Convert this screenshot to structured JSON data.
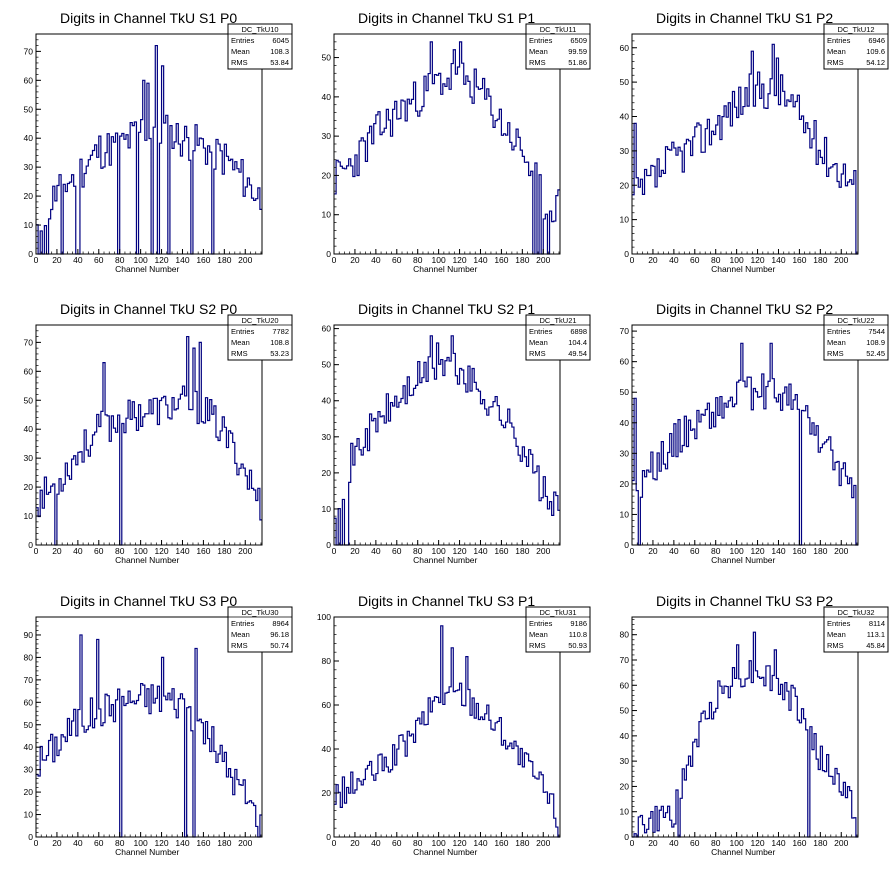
{
  "colors": {
    "line": "#000080",
    "frame": "#000000",
    "background": "#ffffff"
  },
  "stats_labels": {
    "entries": "Entries",
    "mean": "Mean",
    "rms": "RMS"
  },
  "chart_data": [
    {
      "type": "histogram",
      "title": "Digits in Channel TkU S1 P0",
      "xlabel": "Channel Number",
      "ylabel": "",
      "xlim": [
        0,
        216
      ],
      "ylim": [
        0,
        76
      ],
      "yticks": [
        0,
        10,
        20,
        30,
        40,
        50,
        60,
        70
      ],
      "xticks": [
        0,
        20,
        40,
        60,
        80,
        100,
        120,
        140,
        160,
        180,
        200
      ],
      "stats": {
        "name": "DC_TkU10",
        "entries": "6045",
        "mean": "108.3",
        "rms": "53.84"
      },
      "profile": [
        [
          0,
          8
        ],
        [
          20,
          22
        ],
        [
          40,
          28
        ],
        [
          60,
          36
        ],
        [
          80,
          37
        ],
        [
          100,
          43
        ],
        [
          110,
          44
        ],
        [
          130,
          41
        ],
        [
          160,
          37
        ],
        [
          180,
          33
        ],
        [
          200,
          25
        ],
        [
          216,
          18
        ]
      ],
      "spikes": [
        [
          114,
          72
        ],
        [
          102,
          60
        ],
        [
          106,
          59
        ],
        [
          120,
          65
        ]
      ],
      "dips": [
        [
          2,
          0
        ],
        [
          6,
          0
        ],
        [
          24,
          0
        ],
        [
          38,
          0
        ],
        [
          41,
          0
        ],
        [
          78,
          0
        ],
        [
          96,
          0
        ],
        [
          110,
          0
        ],
        [
          116,
          0
        ],
        [
          126,
          0
        ],
        [
          148,
          0
        ],
        [
          168,
          0
        ],
        [
          10,
          0
        ]
      ],
      "noise": 7,
      "seed": 11
    },
    {
      "type": "histogram",
      "title": "Digits in Channel TkU S1 P1",
      "xlabel": "Channel Number",
      "ylabel": "",
      "xlim": [
        0,
        216
      ],
      "ylim": [
        0,
        56
      ],
      "yticks": [
        0,
        10,
        20,
        30,
        40,
        50
      ],
      "xticks": [
        0,
        20,
        40,
        60,
        80,
        100,
        120,
        140,
        160,
        180,
        200
      ],
      "stats": {
        "name": "DC_TkU11",
        "entries": "6509",
        "mean": "99.59",
        "rms": "51.86"
      },
      "profile": [
        [
          0,
          19
        ],
        [
          20,
          24
        ],
        [
          40,
          31
        ],
        [
          60,
          36
        ],
        [
          80,
          40
        ],
        [
          100,
          44
        ],
        [
          120,
          45
        ],
        [
          140,
          41
        ],
        [
          160,
          33
        ],
        [
          180,
          26
        ],
        [
          200,
          13
        ],
        [
          216,
          12
        ]
      ],
      "spikes": [
        [
          92,
          54
        ],
        [
          120,
          54
        ],
        [
          114,
          52
        ]
      ],
      "dips": [
        [
          190,
          0
        ],
        [
          194,
          0
        ],
        [
          198,
          0
        ],
        [
          204,
          0
        ]
      ],
      "noise": 5,
      "seed": 23
    },
    {
      "type": "histogram",
      "title": "Digits in Channel TkU S1 P2",
      "xlabel": "Channel Number",
      "ylabel": "",
      "xlim": [
        0,
        216
      ],
      "ylim": [
        0,
        64
      ],
      "yticks": [
        0,
        10,
        20,
        30,
        40,
        50,
        60
      ],
      "xticks": [
        0,
        20,
        40,
        60,
        80,
        100,
        120,
        140,
        160,
        180,
        200
      ],
      "stats": {
        "name": "DC_TkU12",
        "entries": "6946",
        "mean": "109.6",
        "rms": "54.12"
      },
      "profile": [
        [
          0,
          15
        ],
        [
          20,
          22
        ],
        [
          40,
          28
        ],
        [
          60,
          32
        ],
        [
          80,
          38
        ],
        [
          100,
          44
        ],
        [
          120,
          48
        ],
        [
          140,
          48
        ],
        [
          160,
          40
        ],
        [
          180,
          30
        ],
        [
          200,
          24
        ],
        [
          214,
          20
        ]
      ],
      "spikes": [
        [
          134,
          61
        ],
        [
          114,
          59
        ],
        [
          138,
          57
        ],
        [
          2,
          38
        ]
      ],
      "dips": [
        [
          214,
          0
        ]
      ],
      "noise": 6,
      "seed": 37
    },
    {
      "type": "histogram",
      "title": "Digits in Channel TkU S2 P0",
      "xlabel": "Channel Number",
      "ylabel": "",
      "xlim": [
        0,
        216
      ],
      "ylim": [
        0,
        76
      ],
      "yticks": [
        0,
        10,
        20,
        30,
        40,
        50,
        60,
        70
      ],
      "xticks": [
        0,
        20,
        40,
        60,
        80,
        100,
        120,
        140,
        160,
        180,
        200
      ],
      "stats": {
        "name": "DC_TkU20",
        "entries": "7782",
        "mean": "108.8",
        "rms": "53.23"
      },
      "profile": [
        [
          0,
          15
        ],
        [
          20,
          22
        ],
        [
          40,
          32
        ],
        [
          60,
          40
        ],
        [
          80,
          43
        ],
        [
          100,
          46
        ],
        [
          120,
          47
        ],
        [
          140,
          49
        ],
        [
          160,
          47
        ],
        [
          180,
          38
        ],
        [
          200,
          25
        ],
        [
          216,
          12
        ]
      ],
      "spikes": [
        [
          64,
          63
        ],
        [
          144,
          72
        ],
        [
          156,
          70
        ],
        [
          150,
          68
        ]
      ],
      "dips": [
        [
          18,
          0
        ],
        [
          80,
          0
        ]
      ],
      "noise": 6,
      "seed": 53
    },
    {
      "type": "histogram",
      "title": "Digits in Channel TkU S2 P1",
      "xlabel": "Channel Number",
      "ylabel": "",
      "xlim": [
        0,
        216
      ],
      "ylim": [
        0,
        61
      ],
      "yticks": [
        0,
        10,
        20,
        30,
        40,
        50,
        60
      ],
      "xticks": [
        0,
        20,
        40,
        60,
        80,
        100,
        120,
        140,
        160,
        180,
        200
      ],
      "stats": {
        "name": "DC_TkU21",
        "entries": "6898",
        "mean": "104.4",
        "rms": "49.54"
      },
      "profile": [
        [
          0,
          12
        ],
        [
          20,
          26
        ],
        [
          40,
          34
        ],
        [
          60,
          40
        ],
        [
          80,
          46
        ],
        [
          100,
          50
        ],
        [
          120,
          48
        ],
        [
          140,
          42
        ],
        [
          160,
          36
        ],
        [
          180,
          27
        ],
        [
          200,
          14
        ],
        [
          216,
          8
        ]
      ],
      "spikes": [
        [
          92,
          58
        ],
        [
          112,
          58
        ],
        [
          98,
          56
        ]
      ],
      "dips": [
        [
          2,
          0
        ],
        [
          6,
          0
        ],
        [
          10,
          0
        ],
        [
          12,
          0
        ]
      ],
      "noise": 5,
      "seed": 71
    },
    {
      "type": "histogram",
      "title": "Digits in Channel TkU S2 P2",
      "xlabel": "Channel Number",
      "ylabel": "",
      "xlim": [
        0,
        216
      ],
      "ylim": [
        0,
        72
      ],
      "yticks": [
        0,
        10,
        20,
        30,
        40,
        50,
        60,
        70
      ],
      "xticks": [
        0,
        20,
        40,
        60,
        80,
        100,
        120,
        140,
        160,
        180,
        200
      ],
      "stats": {
        "name": "DC_TkU22",
        "entries": "7544",
        "mean": "108.9",
        "rms": "52.45"
      },
      "profile": [
        [
          0,
          18
        ],
        [
          20,
          26
        ],
        [
          40,
          34
        ],
        [
          60,
          40
        ],
        [
          80,
          44
        ],
        [
          100,
          48
        ],
        [
          120,
          50
        ],
        [
          140,
          50
        ],
        [
          160,
          44
        ],
        [
          180,
          34
        ],
        [
          200,
          24
        ],
        [
          214,
          12
        ]
      ],
      "spikes": [
        [
          104,
          66
        ],
        [
          132,
          66
        ],
        [
          2,
          48
        ]
      ],
      "dips": [
        [
          160,
          0
        ],
        [
          214,
          0
        ],
        [
          6,
          0
        ]
      ],
      "noise": 6,
      "seed": 89
    },
    {
      "type": "histogram",
      "title": "Digits in Channel TkU S3 P0",
      "xlabel": "Channel Number",
      "ylabel": "",
      "xlim": [
        0,
        216
      ],
      "ylim": [
        0,
        98
      ],
      "yticks": [
        0,
        10,
        20,
        30,
        40,
        50,
        60,
        70,
        80,
        90
      ],
      "xticks": [
        0,
        20,
        40,
        60,
        80,
        100,
        120,
        140,
        160,
        180,
        200
      ],
      "stats": {
        "name": "DC_TkU30",
        "entries": "8964",
        "mean": "96.18",
        "rms": "50.74"
      },
      "profile": [
        [
          0,
          32
        ],
        [
          20,
          42
        ],
        [
          40,
          52
        ],
        [
          60,
          56
        ],
        [
          80,
          60
        ],
        [
          100,
          62
        ],
        [
          120,
          62
        ],
        [
          140,
          60
        ],
        [
          160,
          48
        ],
        [
          180,
          32
        ],
        [
          200,
          18
        ],
        [
          216,
          4
        ]
      ],
      "spikes": [
        [
          42,
          90
        ],
        [
          58,
          88
        ],
        [
          152,
          84
        ],
        [
          120,
          80
        ]
      ],
      "dips": [
        [
          80,
          0
        ],
        [
          142,
          0
        ],
        [
          150,
          0
        ]
      ],
      "noise": 8,
      "seed": 101
    },
    {
      "type": "histogram",
      "title": "Digits in Channel TkU S3 P1",
      "xlabel": "Channel Number",
      "ylabel": "",
      "xlim": [
        0,
        216
      ],
      "ylim": [
        0,
        100
      ],
      "yticks": [
        0,
        20,
        40,
        60,
        80,
        100
      ],
      "xticks": [
        0,
        20,
        40,
        60,
        80,
        100,
        120,
        140,
        160,
        180,
        200
      ],
      "stats": {
        "name": "DC_TkU31",
        "entries": "9186",
        "mean": "110.8",
        "rms": "50.93"
      },
      "profile": [
        [
          0,
          18
        ],
        [
          20,
          24
        ],
        [
          40,
          30
        ],
        [
          60,
          38
        ],
        [
          80,
          50
        ],
        [
          100,
          64
        ],
        [
          120,
          66
        ],
        [
          140,
          58
        ],
        [
          160,
          48
        ],
        [
          180,
          34
        ],
        [
          200,
          22
        ],
        [
          216,
          6
        ]
      ],
      "spikes": [
        [
          102,
          96
        ],
        [
          112,
          86
        ],
        [
          126,
          82
        ]
      ],
      "dips": [
        [
          214,
          0
        ]
      ],
      "noise": 7,
      "seed": 127
    },
    {
      "type": "histogram",
      "title": "Digits in Channel TkU S3 P2",
      "xlabel": "Channel Number",
      "ylabel": "",
      "xlim": [
        0,
        216
      ],
      "ylim": [
        0,
        87
      ],
      "yticks": [
        0,
        10,
        20,
        30,
        40,
        50,
        60,
        70,
        80
      ],
      "xticks": [
        0,
        20,
        40,
        60,
        80,
        100,
        120,
        140,
        160,
        180,
        200
      ],
      "stats": {
        "name": "DC_TkU32",
        "entries": "8114",
        "mean": "113.1",
        "rms": "45.84"
      },
      "profile": [
        [
          0,
          4
        ],
        [
          20,
          6
        ],
        [
          40,
          10
        ],
        [
          60,
          38
        ],
        [
          80,
          56
        ],
        [
          100,
          64
        ],
        [
          120,
          66
        ],
        [
          140,
          60
        ],
        [
          160,
          50
        ],
        [
          180,
          30
        ],
        [
          200,
          20
        ],
        [
          214,
          10
        ]
      ],
      "spikes": [
        [
          116,
          81
        ],
        [
          100,
          76
        ],
        [
          136,
          74
        ]
      ],
      "dips": [
        [
          44,
          0
        ],
        [
          168,
          0
        ],
        [
          214,
          0
        ]
      ],
      "noise": 6,
      "seed": 149
    }
  ]
}
